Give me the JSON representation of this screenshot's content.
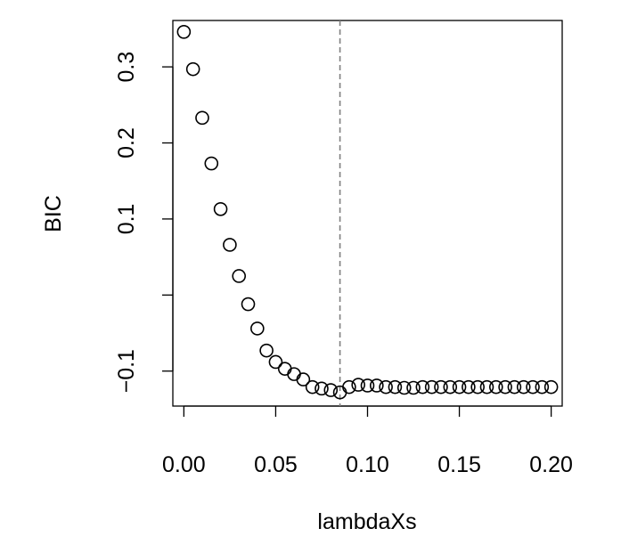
{
  "chart_data": {
    "type": "scatter",
    "title": "",
    "xlabel": "lambdaXs",
    "ylabel": "BIC",
    "xlim": [
      -0.006,
      0.206
    ],
    "ylim": [
      -0.146,
      0.361
    ],
    "x_ticks": [
      {
        "value": 0.0,
        "label": "0.00"
      },
      {
        "value": 0.05,
        "label": "0.05"
      },
      {
        "value": 0.1,
        "label": "0.10"
      },
      {
        "value": 0.15,
        "label": "0.15"
      },
      {
        "value": 0.2,
        "label": "0.20"
      }
    ],
    "y_ticks": [
      {
        "value": -0.1,
        "label": "−0.1"
      },
      {
        "value": 0.0,
        "label": ""
      },
      {
        "value": 0.1,
        "label": "0.1"
      },
      {
        "value": 0.2,
        "label": "0.2"
      },
      {
        "value": 0.3,
        "label": "0.3"
      }
    ],
    "reference_line": {
      "axis": "x",
      "value": 0.085,
      "style": "dashed",
      "color": "#808080"
    },
    "grid": false,
    "marker": "open-circle",
    "series": [
      {
        "x": [
          0.0,
          0.005,
          0.01,
          0.015,
          0.02,
          0.025,
          0.03,
          0.035,
          0.04,
          0.045,
          0.05,
          0.055,
          0.06,
          0.065,
          0.07,
          0.075,
          0.08,
          0.085,
          0.09,
          0.095,
          0.1,
          0.105,
          0.11,
          0.115,
          0.12,
          0.125,
          0.13,
          0.135,
          0.14,
          0.145,
          0.15,
          0.155,
          0.16,
          0.165,
          0.17,
          0.175,
          0.18,
          0.185,
          0.19,
          0.195,
          0.2
        ],
        "y": [
          0.346,
          0.297,
          0.233,
          0.173,
          0.113,
          0.066,
          0.025,
          -0.012,
          -0.044,
          -0.073,
          -0.088,
          -0.097,
          -0.104,
          -0.111,
          -0.121,
          -0.123,
          -0.125,
          -0.128,
          -0.121,
          -0.118,
          -0.119,
          -0.119,
          -0.121,
          -0.121,
          -0.122,
          -0.122,
          -0.121,
          -0.121,
          -0.121,
          -0.121,
          -0.121,
          -0.121,
          -0.121,
          -0.121,
          -0.121,
          -0.121,
          -0.121,
          -0.121,
          -0.121,
          -0.121,
          -0.121
        ]
      }
    ]
  }
}
